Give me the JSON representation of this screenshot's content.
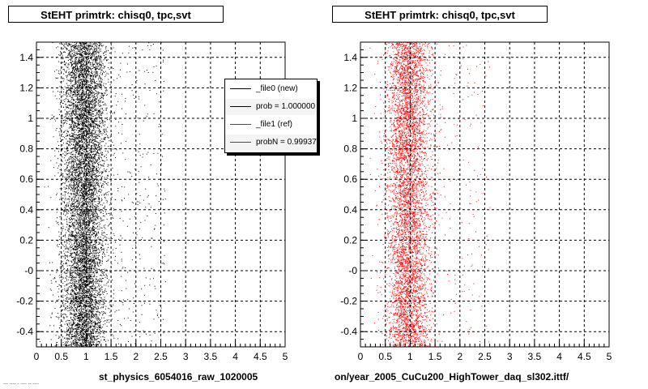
{
  "panels": [
    {
      "title": "StEHT primtrk: chisq0, tpc,svt",
      "footer": "st_physics_6054016_raw_1020005",
      "color": "#000000"
    },
    {
      "title": "StEHT primtrk: chisq0, tpc,svt",
      "footer": "on/year_2005_CuCu200_HighTower_daq_sl302.ittf/",
      "color": "#ff0000"
    }
  ],
  "legend": {
    "entries": [
      {
        "label": "_file0 (new)",
        "color": "#000000"
      },
      {
        "label": "prob = 1.000000",
        "color": "#000000"
      },
      {
        "label": "_file1 (ref)",
        "color": "#ff0000"
      },
      {
        "label": "probN = 0.99937",
        "color": "#ff0000"
      }
    ]
  },
  "stamp": "--- ---- - ---- -- ----",
  "chart_data": [
    {
      "type": "scatter",
      "title": "StEHT primtrk: chisq0, tpc,svt",
      "xlim": [
        0,
        5
      ],
      "ylim": [
        -0.5,
        1.5
      ],
      "xticks": [
        "0",
        "0.5",
        "1",
        "1.5",
        "2",
        "2.5",
        "3",
        "3.5",
        "4",
        "4.5",
        "5"
      ],
      "yticks": [
        "-0.4",
        "-0.2",
        "-0",
        "0.2",
        "0.4",
        "0.6",
        "0.8",
        "1",
        "1.2",
        "1.4"
      ],
      "grid": true,
      "series": [
        {
          "name": "_file0 (new)",
          "color": "#000000",
          "x_center": 0.95,
          "x_spread": 0.22,
          "n_points": 9000
        }
      ]
    },
    {
      "type": "scatter",
      "title": "StEHT primtrk: chisq0, tpc,svt",
      "xlim": [
        0,
        5
      ],
      "ylim": [
        -0.5,
        1.5
      ],
      "xticks": [
        "0",
        "0.5",
        "1",
        "1.5",
        "2",
        "2.5",
        "3",
        "3.5",
        "4",
        "4.5",
        "5"
      ],
      "yticks": [
        "-0.4",
        "-0.2",
        "-0",
        "0.2",
        "0.4",
        "0.6",
        "0.8",
        "1",
        "1.2",
        "1.4"
      ],
      "grid": true,
      "series": [
        {
          "name": "_file1 (ref)",
          "color": "#ff0000",
          "x_center": 0.95,
          "x_spread": 0.22,
          "n_points": 6000
        }
      ]
    }
  ]
}
